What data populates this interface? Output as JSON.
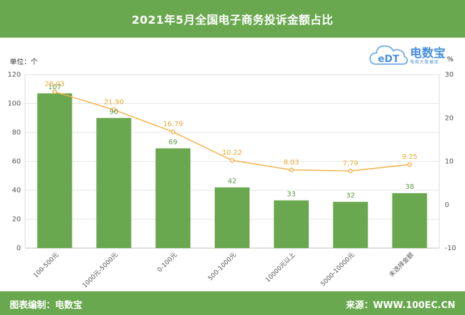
{
  "header": {
    "title": "2021年5月全国电子商务投诉金额占比"
  },
  "axes": {
    "left_unit": "单位：个",
    "right_unit": "%"
  },
  "logo": {
    "brand": "电数宝",
    "sub": "电商大数据库",
    "mark_text": "eDT"
  },
  "footer": {
    "left": "图表编制：电数宝",
    "right": "来源：WWW.100EC.CN"
  },
  "chart_data": {
    "type": "bar",
    "categories": [
      "100-500元",
      "1000元-5000元",
      "0-100元",
      "500-1000元",
      "10000元以上",
      "5000-10000元",
      "未选择金额"
    ],
    "series": [
      {
        "type": "bar",
        "axis": "left",
        "values": [
          107,
          90,
          69,
          42,
          33,
          32,
          38
        ],
        "color": "#6aa84f"
      },
      {
        "type": "line",
        "axis": "right",
        "values": [
          26.03,
          21.9,
          16.79,
          10.22,
          8.03,
          7.79,
          9.25
        ],
        "color": "#f6b24a"
      }
    ],
    "y_left": {
      "min": 0,
      "max": 120,
      "ticks": [
        0,
        20,
        40,
        60,
        80,
        100,
        120
      ]
    },
    "y_right": {
      "min": -10,
      "max": 30,
      "ticks": [
        -10,
        0,
        10,
        20,
        30
      ]
    },
    "grid": true
  }
}
